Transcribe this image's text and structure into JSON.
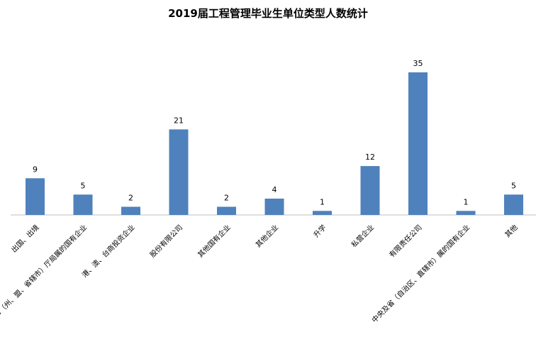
{
  "chart_data": {
    "type": "bar",
    "title": "2019届工程管理毕业生单位类型人数统计",
    "categories": [
      "出国、出境",
      "市（州、盟、省辖市）厅局属的国有企业",
      "港、澳、台商投资企业",
      "股份有限公司",
      "其他国有企业",
      "其他企业",
      "升学",
      "私营企业",
      "有限责任公司",
      "中央及省（自治区、直辖市）属的国有企业",
      "其他"
    ],
    "values": [
      9,
      5,
      2,
      21,
      2,
      4,
      1,
      12,
      35,
      1,
      5
    ],
    "ylim": [
      0,
      35
    ],
    "grid": false,
    "bar_color": "#4f81bd"
  }
}
